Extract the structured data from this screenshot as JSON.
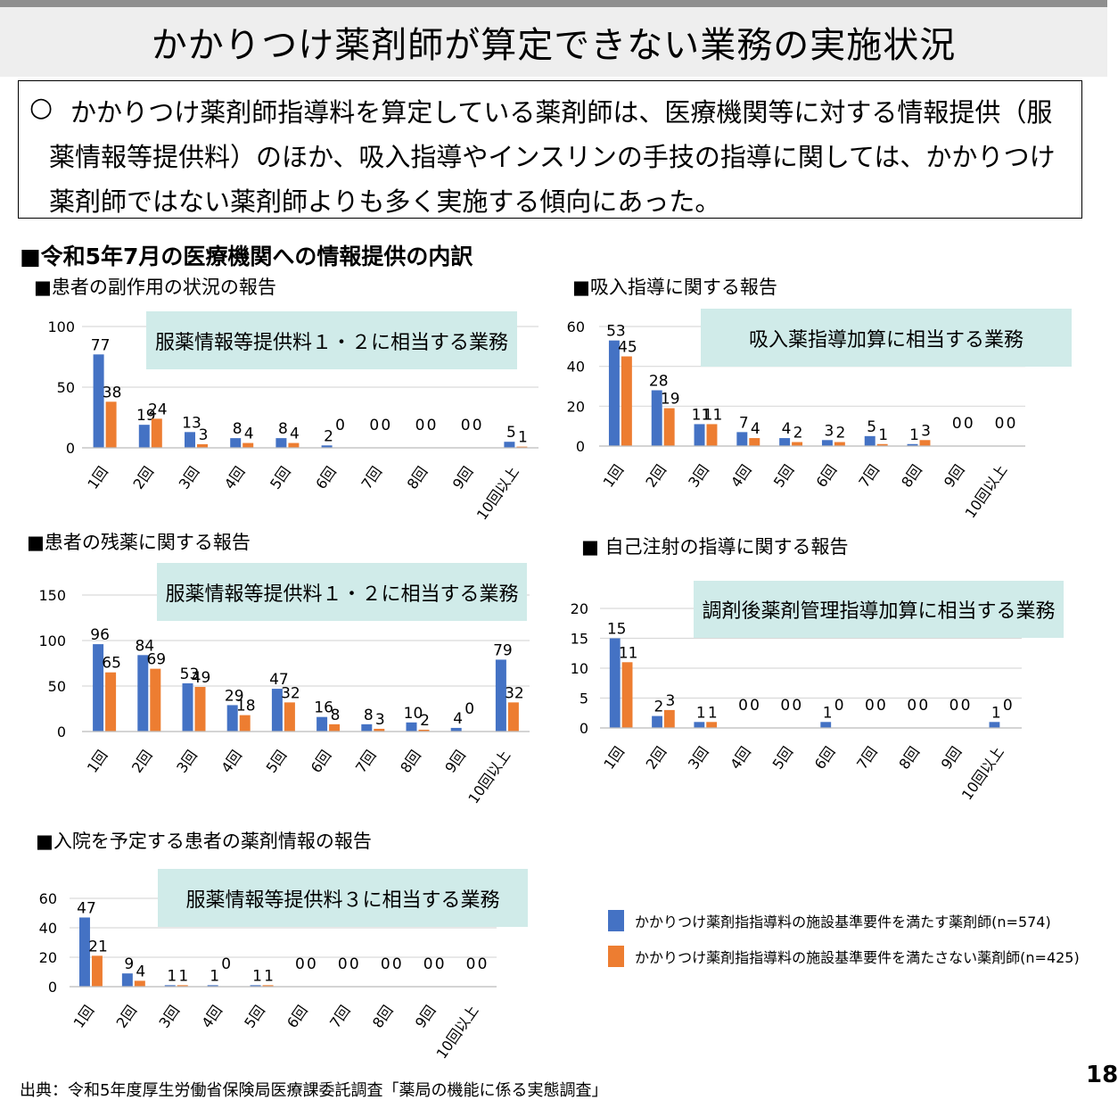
{
  "title": "かかりつけ薬剤師が算定できない業務の実施状況",
  "summary": {
    "mark": "○",
    "text": "かかりつけ薬剤師指導料を算定している薬剤師は、医療機関等に対する情報提供（服薬情報等提供料）のほか、吸入指導やインスリンの手技の指導に関しては、かかりつけ薬剤師ではない薬剤師よりも多く実施する傾向にあった。"
  },
  "section_title": "■令和5年7月の医療機関への情報提供の内訳",
  "colors": {
    "blue": "#4472c4",
    "orange": "#ed7d31",
    "banner": "#d0ebe9",
    "grid": "#d9d9d9"
  },
  "legend": [
    {
      "label": "かかりつけ薬剤指指導料の施設基準要件を満たす薬剤師(n=574)",
      "color": "#4472c4"
    },
    {
      "label": "かかりつけ薬剤指指導料の施設基準要件を満たさない薬剤師(n=425)",
      "color": "#ed7d31"
    }
  ],
  "source": "出典：令和5年度厚生労働省保険局医療課委託調査「薬局の機能に係る実態調査」",
  "page_number": "18",
  "chart_data": [
    {
      "type": "bar",
      "title": "■患者の副作用の状況の報告",
      "banner": "服薬情報等提供料１・２に相当する業務",
      "categories": [
        "1回",
        "2回",
        "3回",
        "4回",
        "5回",
        "6回",
        "7回",
        "8回",
        "9回",
        "10回以上"
      ],
      "series": [
        {
          "values": [
            77,
            19,
            13,
            8,
            8,
            2,
            0,
            0,
            0,
            5
          ]
        },
        {
          "values": [
            38,
            24,
            3,
            4,
            4,
            0,
            0,
            0,
            0,
            1
          ]
        }
      ],
      "yticks": [
        0,
        50,
        100
      ],
      "ylim": [
        0,
        100
      ]
    },
    {
      "type": "bar",
      "title": "■吸入指導に関する報告",
      "banner": "吸入薬指導加算に相当する業務",
      "categories": [
        "1回",
        "2回",
        "3回",
        "4回",
        "5回",
        "6回",
        "7回",
        "8回",
        "9回",
        "10回以上"
      ],
      "series": [
        {
          "values": [
            53,
            28,
            11,
            7,
            4,
            3,
            5,
            1,
            0,
            0
          ]
        },
        {
          "values": [
            45,
            19,
            11,
            4,
            2,
            2,
            1,
            3,
            0,
            0
          ]
        }
      ],
      "yticks": [
        0,
        20,
        40,
        60
      ],
      "ylim": [
        0,
        60
      ]
    },
    {
      "type": "bar",
      "title": "■患者の残薬に関する報告",
      "banner": "服薬情報等提供料１・２に相当する業務",
      "categories": [
        "1回",
        "2回",
        "3回",
        "4回",
        "5回",
        "6回",
        "7回",
        "8回",
        "9回",
        "10回以上"
      ],
      "series": [
        {
          "values": [
            96,
            84,
            53,
            29,
            47,
            16,
            8,
            10,
            4,
            79
          ]
        },
        {
          "values": [
            65,
            69,
            49,
            18,
            32,
            8,
            3,
            2,
            0,
            32
          ]
        }
      ],
      "yticks": [
        0,
        50,
        100,
        150
      ],
      "ylim": [
        0,
        150
      ]
    },
    {
      "type": "bar",
      "title": "■ 自己注射の指導に関する報告",
      "banner": "調剤後薬剤管理指導加算に相当する業務",
      "categories": [
        "1回",
        "2回",
        "3回",
        "4回",
        "5回",
        "6回",
        "7回",
        "8回",
        "9回",
        "10回以上"
      ],
      "series": [
        {
          "values": [
            15,
            2,
            1,
            0,
            0,
            1,
            0,
            0,
            0,
            1
          ]
        },
        {
          "values": [
            11,
            3,
            1,
            0,
            0,
            0,
            0,
            0,
            0,
            0
          ]
        }
      ],
      "yticks": [
        0,
        5,
        10,
        15,
        20
      ],
      "ylim": [
        0,
        20
      ]
    },
    {
      "type": "bar",
      "title": "■入院を予定する患者の薬剤情報の報告",
      "banner": "服薬情報等提供料３に相当する業務",
      "categories": [
        "1回",
        "2回",
        "3回",
        "4回",
        "5回",
        "6回",
        "7回",
        "8回",
        "9回",
        "10回以上"
      ],
      "series": [
        {
          "values": [
            47,
            9,
            1,
            1,
            1,
            0,
            0,
            0,
            0,
            0
          ]
        },
        {
          "values": [
            21,
            4,
            1,
            0,
            1,
            0,
            0,
            0,
            0,
            0
          ]
        }
      ],
      "yticks": [
        0,
        20,
        40,
        60
      ],
      "ylim": [
        0,
        60
      ]
    }
  ]
}
